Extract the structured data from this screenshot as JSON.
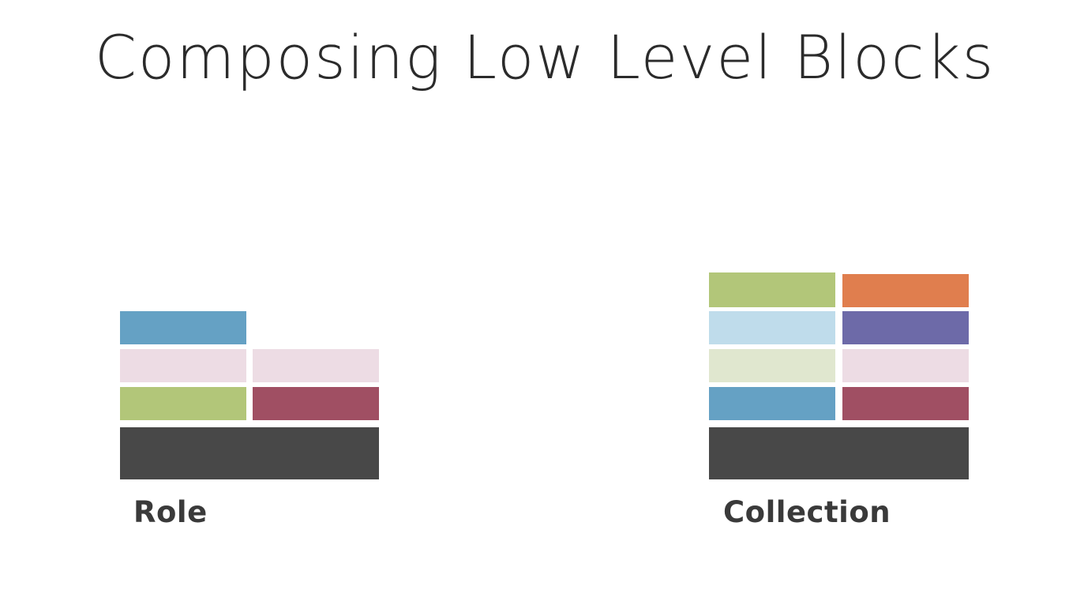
{
  "title": "Composing Low Level Blocks",
  "diagrams": {
    "role": {
      "label": "Role",
      "blocks": [
        {
          "name": "role-block-blue",
          "color": "#65A1C4"
        },
        {
          "name": "role-block-pink-left",
          "color": "#EDDCE4"
        },
        {
          "name": "role-block-pink-right",
          "color": "#EDDCE4"
        },
        {
          "name": "role-block-green",
          "color": "#B2C679"
        },
        {
          "name": "role-block-maroon",
          "color": "#A04F63"
        },
        {
          "name": "role-block-base",
          "color": "#484848"
        }
      ]
    },
    "collection": {
      "label": "Collection",
      "blocks": [
        {
          "name": "collection-block-green",
          "color": "#B2C679"
        },
        {
          "name": "collection-block-orange",
          "color": "#E07E4E"
        },
        {
          "name": "collection-block-lightblue",
          "color": "#BFDCEB"
        },
        {
          "name": "collection-block-purple",
          "color": "#6D6AA8"
        },
        {
          "name": "collection-block-palegreen",
          "color": "#E0E7CF"
        },
        {
          "name": "collection-block-pink",
          "color": "#EDDCE4"
        },
        {
          "name": "collection-block-blue",
          "color": "#65A1C4"
        },
        {
          "name": "collection-block-maroon",
          "color": "#A04F63"
        },
        {
          "name": "collection-block-base",
          "color": "#484848"
        }
      ]
    }
  }
}
